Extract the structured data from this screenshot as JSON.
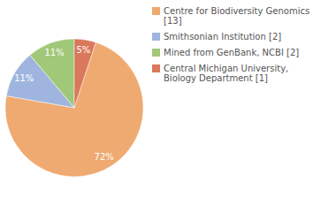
{
  "chart_data": {
    "type": "pie",
    "categories": [
      "Centre for Biodiversity Genomics [13]",
      "Smithsonian Institution [2]",
      "Mined from GenBank, NCBI [2]",
      "Central Michigan University, Biology Department [1]"
    ],
    "values": [
      72,
      11,
      11,
      5
    ],
    "value_labels": [
      "72%",
      "11%",
      "11%",
      "5%"
    ],
    "colors": [
      "#efaa71",
      "#9fb5df",
      "#a1c879",
      "#d9785a"
    ],
    "data_labels": true,
    "legend": "right"
  }
}
